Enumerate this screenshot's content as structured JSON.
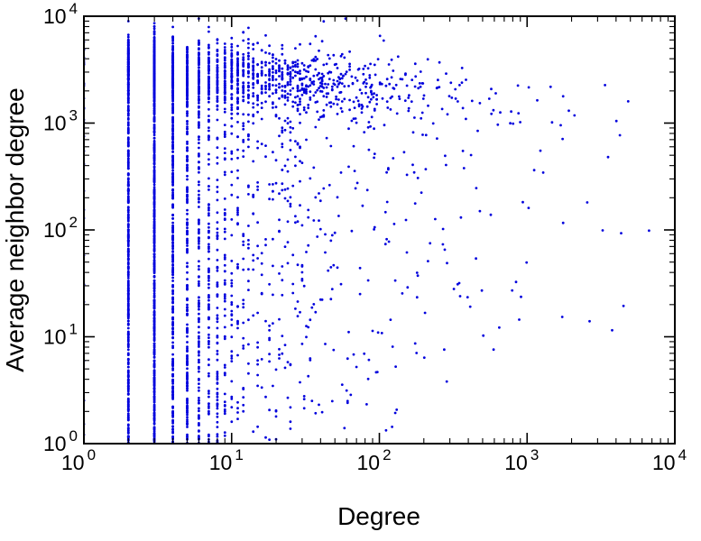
{
  "chart_data": {
    "type": "scatter",
    "title": "",
    "xlabel": "Degree",
    "ylabel": "Average neighbor degree",
    "xscale": "log",
    "yscale": "log",
    "xlim": [
      1,
      10000
    ],
    "ylim": [
      1,
      10000
    ],
    "tick_base": "10",
    "x_tick_exponents": [
      0,
      1,
      2,
      3,
      4
    ],
    "y_tick_exponents": [
      0,
      1,
      2,
      3,
      4
    ],
    "grid": false,
    "legend": null,
    "axis_color": "#000000",
    "marker": {
      "shape": "dot",
      "color": "#0000dd",
      "radius": 1.4
    },
    "description": "Log-log scatter of average neighbor degree versus node degree. Dense vertical columns at small integer degrees (2-10) spanning y from 1 to about 6000, a dense slightly declining band around y=2000-4000 for degrees 10-200, progressively sparser points out to degree 10^4, with a thin scattered tail reaching low y values.",
    "generator": {
      "seed": 20240613,
      "n_points": 3800,
      "k_min": 2,
      "pareto_alpha": 0.75,
      "k_max": 9000,
      "p_k_equals_1": 0.006,
      "integer_k_below": 150,
      "band_base": 2800,
      "band_ref_k": 10,
      "band_slope": -0.12,
      "band_sigma": 0.16,
      "p_band": {
        "low": 0.3,
        "mid": 0.55,
        "high": 0.45
      },
      "tail_bias_exp": 0.75,
      "tail_upper_mult": 1.4,
      "tail_floor_coef": 0.22,
      "y_max": 9500
    }
  }
}
